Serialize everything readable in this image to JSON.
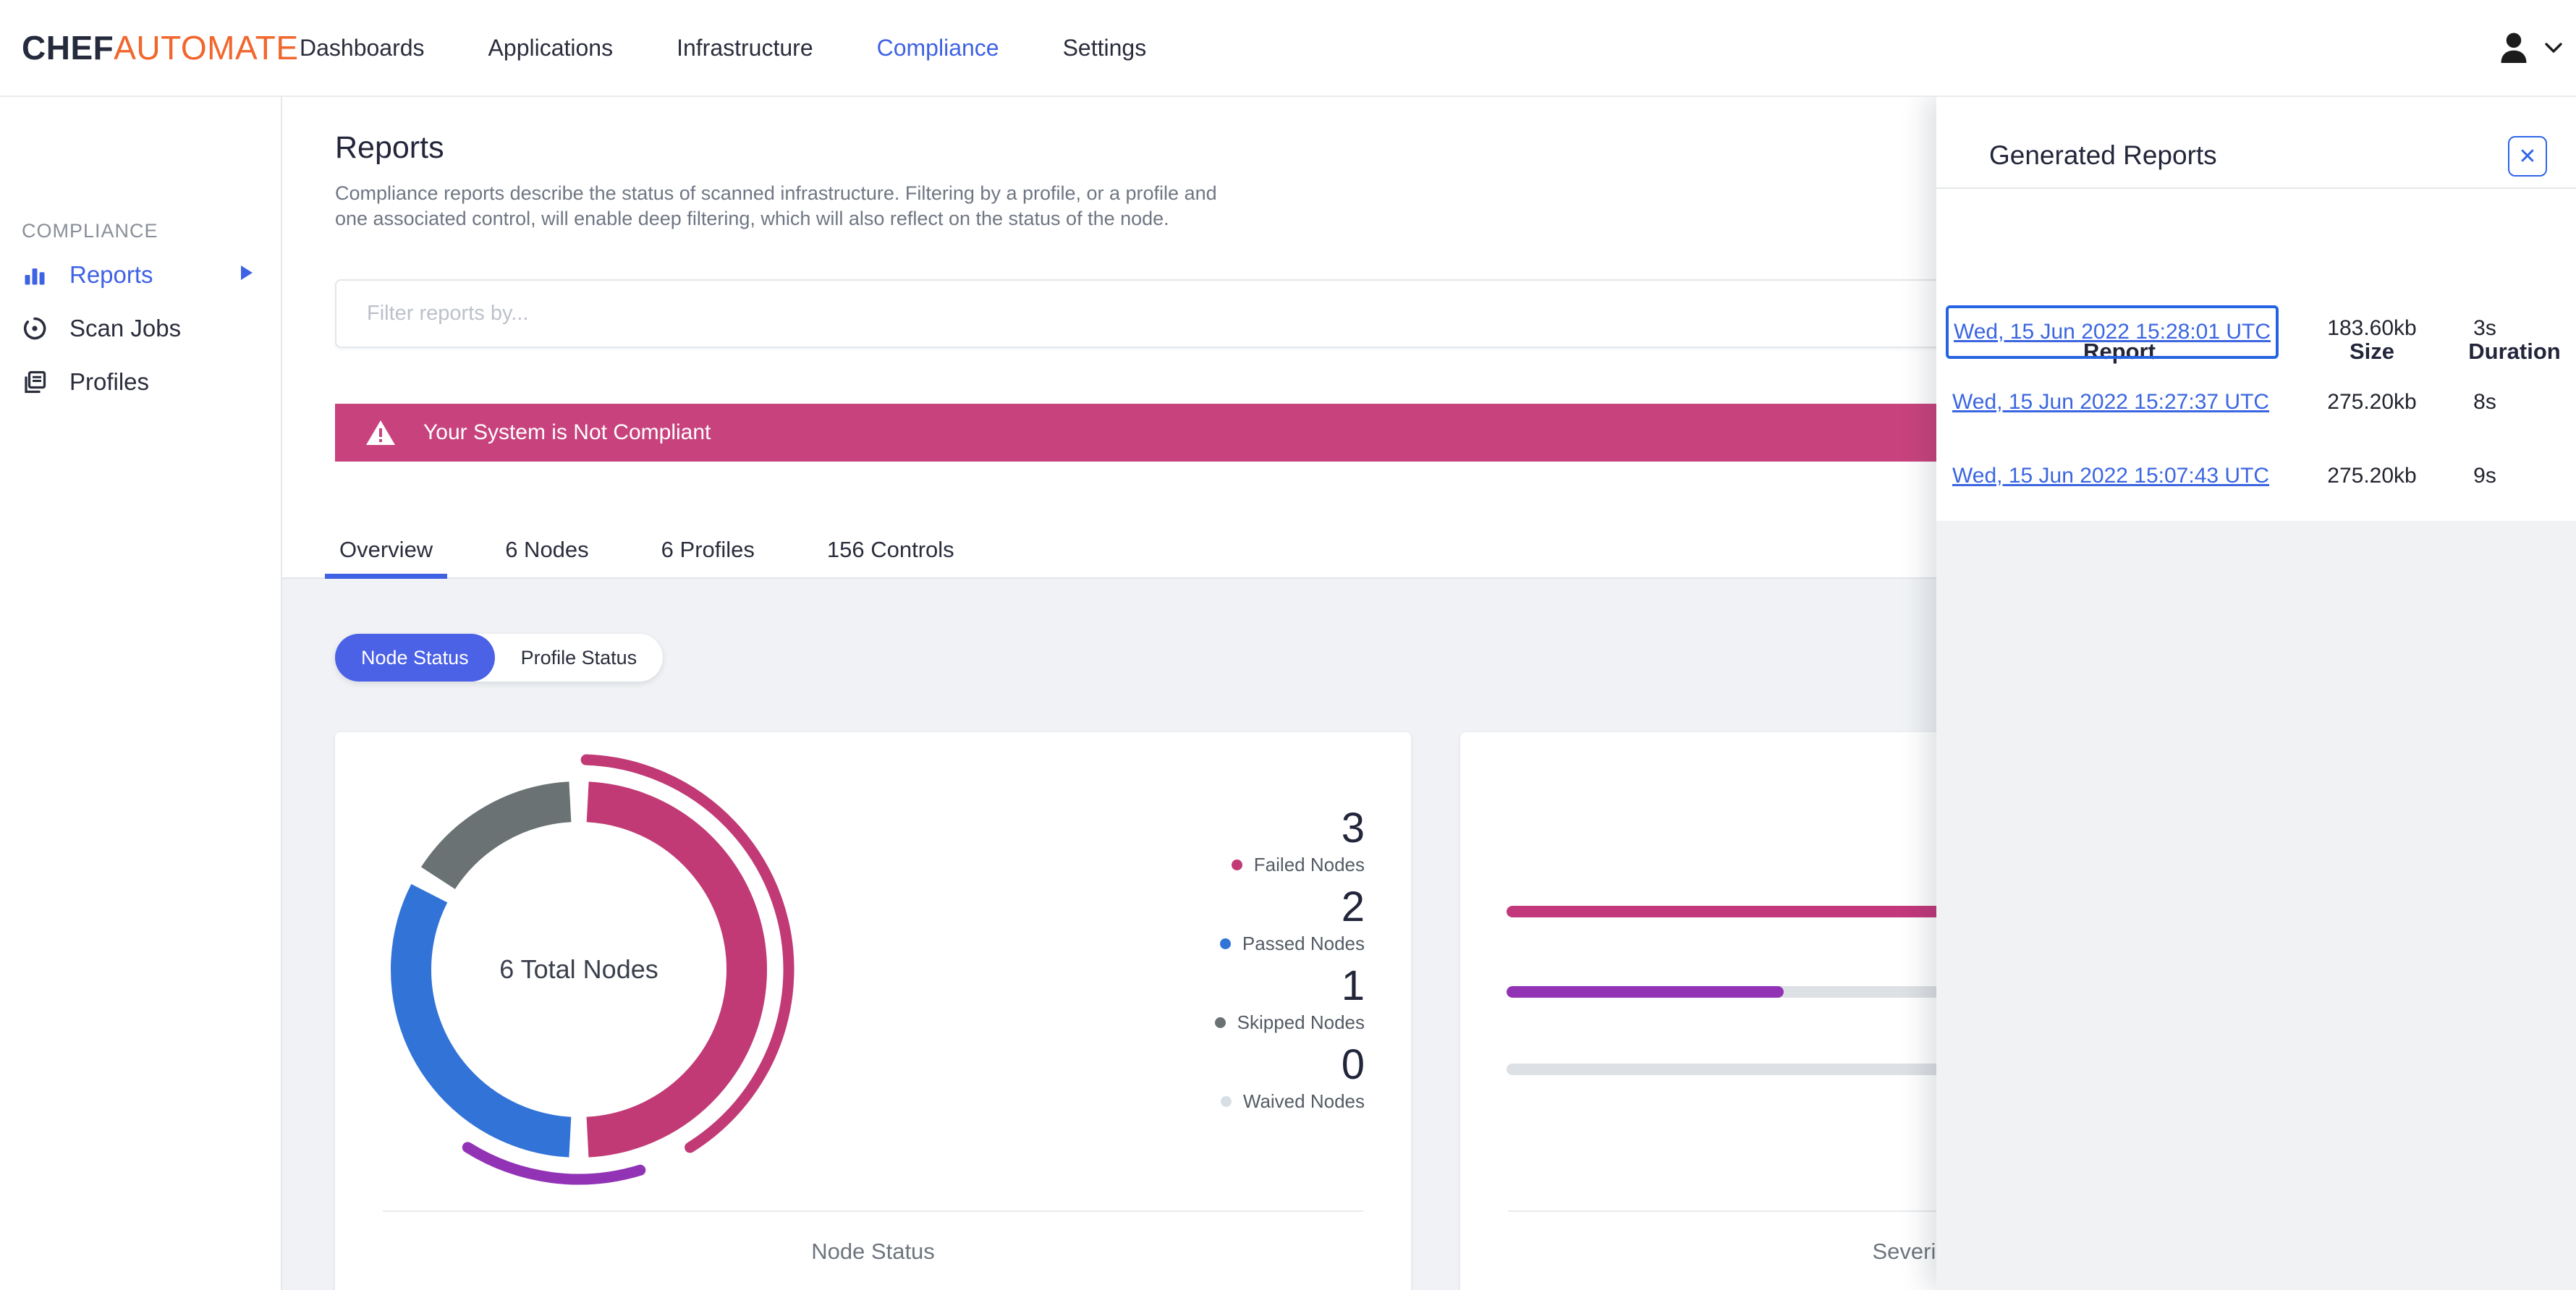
{
  "brand": {
    "chef": "CHEF",
    "automate": "AUTOMATE"
  },
  "nav": {
    "items": [
      {
        "label": "Dashboards",
        "active": false
      },
      {
        "label": "Applications",
        "active": false
      },
      {
        "label": "Infrastructure",
        "active": false
      },
      {
        "label": "Compliance",
        "active": true
      },
      {
        "label": "Settings",
        "active": false
      }
    ]
  },
  "sidebar": {
    "section": "COMPLIANCE",
    "items": [
      {
        "label": "Reports",
        "active": true
      },
      {
        "label": "Scan Jobs",
        "active": false
      },
      {
        "label": "Profiles",
        "active": false
      }
    ]
  },
  "page": {
    "title": "Reports",
    "description": "Compliance reports describe the status of scanned infrastructure. Filtering by a profile, or a profile and one associated control, will enable deep filtering, which will also reflect on the status of the node."
  },
  "filter": {
    "placeholder": "Filter reports by..."
  },
  "banner": {
    "message": "Your System is Not Compliant",
    "color": "#C8437E"
  },
  "tabs": {
    "items": [
      "Overview",
      "6 Nodes",
      "6 Profiles",
      "156 Controls"
    ],
    "active": "Overview"
  },
  "toggle": {
    "options": [
      "Node Status",
      "Profile Status"
    ],
    "active": "Node Status"
  },
  "panel": {
    "title": "Generated Reports",
    "close_label": "✕",
    "columns": [
      "Report",
      "Size",
      "Duration"
    ],
    "rows": [
      {
        "report": "Wed, 15 Jun 2022 15:28:01 UTC",
        "size": "183.60kb",
        "duration": "3s",
        "focused": true
      },
      {
        "report": "Wed, 15 Jun 2022 15:27:37 UTC",
        "size": "275.20kb",
        "duration": "8s",
        "focused": false
      },
      {
        "report": "Wed, 15 Jun 2022 15:07:43 UTC",
        "size": "275.20kb",
        "duration": "9s",
        "focused": false
      }
    ]
  },
  "chart_data": [
    {
      "type": "donut",
      "title": "Node Status",
      "center_label": "6 Total Nodes",
      "total_nodes": 6,
      "legend_position": "right",
      "segments": [
        {
          "label": "Failed Nodes",
          "value": 3,
          "color": "#C13A76"
        },
        {
          "label": "Passed Nodes",
          "value": 2,
          "color": "#3273D8"
        },
        {
          "label": "Skipped Nodes",
          "value": 1,
          "color": "#6A7273"
        },
        {
          "label": "Waived Nodes",
          "value": 0,
          "color": "#D8DFE4"
        }
      ],
      "outer_arcs": [
        {
          "color": "#C13A76",
          "start_deg": 2,
          "sweep_deg": 146
        },
        {
          "color": "#9233B5",
          "start_deg": 163,
          "sweep_deg": 49
        }
      ]
    },
    {
      "type": "bar",
      "orientation": "horizontal",
      "title": "Severity of Node Failures",
      "track_color": "#DDE0E4",
      "bars": [
        {
          "color": "#C2387B",
          "fill_pct": 100
        },
        {
          "color": "#9233B5",
          "fill_pct": 28.2
        },
        {
          "color": "#DDE0E4",
          "fill_pct": 0
        }
      ]
    }
  ],
  "icons": {
    "user": "user-avatar-icon",
    "chevron": "chevron-down-icon",
    "warning": "warning-triangle-icon"
  },
  "colors": {
    "accent_blue": "#3F62E4",
    "pill_blue": "#4B61E6",
    "banner_pink": "#C8437E",
    "brand_orange": "#F1662C",
    "bg_gray": "#F0F2F5"
  }
}
